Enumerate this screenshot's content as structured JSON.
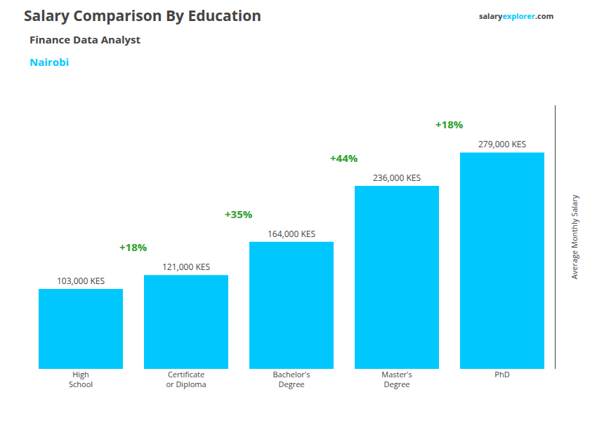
{
  "chart_data": {
    "type": "bar",
    "title": "Salary Comparison By Education",
    "subtitle": "Finance Data Analyst",
    "location": "Nairobi",
    "watermark": [
      "salary",
      "explorer",
      ".com"
    ],
    "ylabel": "Average Monthly Salary",
    "categories": [
      "High\nSchool",
      "Certificate\nor Diploma",
      "Bachelor's\nDegree",
      "Master's\nDegree",
      "PhD"
    ],
    "values": [
      103000,
      121000,
      164000,
      236000,
      279000
    ],
    "value_labels": [
      "103,000 KES",
      "121,000 KES",
      "164,000 KES",
      "236,000 KES",
      "279,000 KES"
    ],
    "data_labels": true,
    "change_labels": [
      "+18%",
      "+35%",
      "+44%",
      "+18%"
    ],
    "color": "#00C8FF",
    "ylim": [
      0,
      340000
    ],
    "yticks": [],
    "grid": false,
    "tick_labels": "x"
  }
}
